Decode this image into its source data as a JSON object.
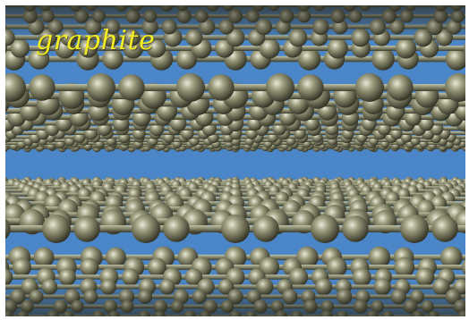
{
  "title": "graphite",
  "colors": {
    "background_blue": "#4a86c8",
    "atom": "#8a8a6c",
    "title_yellow": "#f2ee22"
  },
  "layers": [
    {
      "name": "upper-graphene-sheet"
    },
    {
      "name": "lower-graphene-sheet"
    }
  ]
}
